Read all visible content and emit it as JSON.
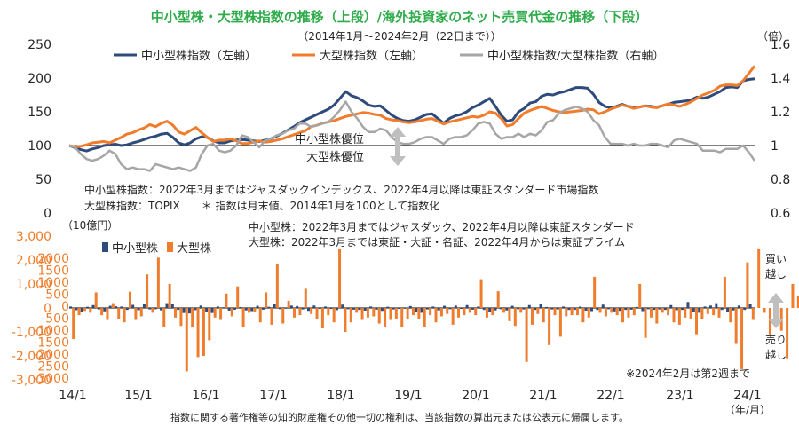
{
  "title": "中小型株・大型株指数の推移（上段）/海外投資家のネット売買代金の推移（下段）",
  "subtitle": "（2014年1月～2024年2月（22日まで））",
  "footer": "指数に関する著作権等の知的財産権その他一切の権利は、当該指数の算出元または公表元に帰属します。",
  "colors": {
    "title": "#2eab4a",
    "small": "#2f4b7c",
    "large": "#ef7d2d",
    "ratio": "#a6a6a6",
    "axis_red": "#ef7d2d",
    "text": "#262626",
    "arrow": "#bfbfbf"
  },
  "chart_data": [
    {
      "type": "line",
      "y2unit": "（倍）",
      "ylim": [
        0,
        250
      ],
      "yticks": [
        "0",
        "50",
        "100",
        "150",
        "200",
        "250"
      ],
      "y2lim": [
        0.6,
        1.6
      ],
      "y2ticks": [
        "0.6",
        "0.8",
        "1",
        "1.2",
        "1.4",
        "1.6"
      ],
      "legend": [
        "中小型株指数（左軸）",
        "大型株指数（左軸）",
        "中小型株指数/大型株指数（右軸）"
      ],
      "series": [
        {
          "name": "中小型株指数（左軸）",
          "axis": "left",
          "values": [
            100,
            97,
            94,
            92,
            95,
            97,
            100,
            101,
            102,
            100,
            101,
            104,
            106,
            109,
            112,
            114,
            117,
            118,
            112,
            104,
            101,
            104,
            110,
            113,
            112,
            107,
            104,
            104,
            107,
            108,
            109,
            108,
            107,
            106,
            108,
            110,
            114,
            118,
            123,
            128,
            134,
            138,
            142,
            146,
            150,
            154,
            160,
            170,
            180,
            174,
            171,
            166,
            160,
            158,
            159,
            152,
            145,
            140,
            137,
            136,
            138,
            142,
            146,
            147,
            140,
            133,
            140,
            144,
            146,
            150,
            156,
            160,
            165,
            170,
            158,
            145,
            136,
            138,
            150,
            155,
            163,
            165,
            173,
            176,
            175,
            178,
            180,
            183,
            186,
            186,
            185,
            176,
            164,
            158,
            156,
            158,
            161,
            158,
            157,
            157,
            159,
            158,
            157,
            159,
            161,
            164,
            165,
            166,
            168,
            172,
            170,
            172,
            176,
            180,
            186,
            187,
            186,
            196,
            198,
            199
          ]
        },
        {
          "name": "大型株指数（左軸）",
          "axis": "left",
          "values": [
            100,
            98,
            99,
            101,
            104,
            105,
            106,
            104,
            108,
            112,
            117,
            119,
            123,
            126,
            131,
            128,
            133,
            136,
            130,
            120,
            117,
            122,
            127,
            119,
            112,
            106,
            108,
            108,
            110,
            107,
            103,
            103,
            105,
            107,
            105,
            106,
            108,
            110,
            113,
            116,
            119,
            122,
            128,
            130,
            133,
            135,
            137,
            140,
            143,
            145,
            147,
            149,
            148,
            146,
            145,
            140,
            138,
            137,
            135,
            134,
            135,
            137,
            139,
            140,
            136,
            132,
            135,
            137,
            139,
            141,
            143,
            142,
            145,
            150,
            148,
            140,
            129,
            131,
            140,
            148,
            152,
            155,
            158,
            155,
            152,
            150,
            149,
            150,
            151,
            152,
            154,
            153,
            147,
            150,
            154,
            157,
            160,
            158,
            155,
            157,
            159,
            157,
            156,
            159,
            162,
            160,
            158,
            161,
            165,
            170,
            175,
            178,
            182,
            188,
            190,
            190,
            189,
            196,
            207,
            218
          ]
        },
        {
          "name": "中小型株指数/大型株指数（右軸）",
          "axis": "right",
          "values": [
            1.0,
            0.99,
            0.95,
            0.92,
            0.91,
            0.92,
            0.94,
            0.97,
            0.95,
            0.89,
            0.86,
            0.87,
            0.86,
            0.86,
            0.85,
            0.89,
            0.88,
            0.87,
            0.86,
            0.87,
            0.86,
            0.85,
            0.87,
            0.95,
            1.0,
            1.01,
            0.97,
            0.96,
            0.97,
            1.0,
            1.06,
            1.05,
            1.02,
            0.99,
            1.03,
            1.04,
            1.06,
            1.07,
            1.09,
            1.1,
            1.13,
            1.13,
            1.11,
            1.12,
            1.13,
            1.14,
            1.17,
            1.21,
            1.26,
            1.2,
            1.16,
            1.11,
            1.08,
            1.08,
            1.1,
            1.09,
            1.05,
            1.02,
            1.01,
            1.01,
            1.02,
            1.04,
            1.05,
            1.05,
            1.03,
            1.01,
            1.04,
            1.05,
            1.05,
            1.06,
            1.09,
            1.13,
            1.14,
            1.13,
            1.07,
            1.04,
            1.05,
            1.05,
            1.07,
            1.05,
            1.07,
            1.06,
            1.09,
            1.14,
            1.15,
            1.19,
            1.21,
            1.22,
            1.23,
            1.22,
            1.2,
            1.15,
            1.12,
            1.05,
            1.01,
            1.01,
            1.01,
            1.0,
            1.01,
            1.0,
            1.0,
            1.01,
            1.01,
            1.0,
            0.99,
            1.03,
            1.04,
            1.03,
            1.02,
            1.01,
            0.97,
            0.97,
            0.97,
            0.96,
            0.98,
            0.98,
            0.98,
            1.0,
            0.96,
            0.91
          ]
        }
      ],
      "annotations": {
        "small_cap_superior": "中小型株優位",
        "large_cap_superior": "大型株優位"
      },
      "notes": [
        "中小型株指数：2022年3月まではジャスダックインデックス、2022年4月以降は東証スタンダード市場指数",
        "大型株指数：TOPIX　　＊ 指数は月末値、2014年1月を100として指数化"
      ]
    },
    {
      "type": "bar",
      "yunit": "（10億円）",
      "ylim": [
        -3000,
        3000
      ],
      "yticks": [
        "3,000",
        "2,000",
        "1,000",
        "0",
        "-1,000",
        "-2,000",
        "-3,000"
      ],
      "yticks_inner": [
        "2000",
        "1500",
        "1000",
        "500",
        "0",
        "-500",
        "-1000",
        "-1500",
        "-2000",
        "-2500",
        "-3000"
      ],
      "x_ticks": [
        "14/1",
        "15/1",
        "16/1",
        "17/1",
        "18/1",
        "19/1",
        "20/1",
        "21/1",
        "22/1",
        "23/1",
        "24/1"
      ],
      "x_unit": "（年/月）",
      "legend": [
        "中小型株",
        "大型株"
      ],
      "series": [
        {
          "name": "中小型株",
          "values": [
            60,
            -90,
            -150,
            50,
            120,
            -60,
            -140,
            90,
            70,
            60,
            -80,
            130,
            -90,
            150,
            -60,
            -50,
            -100,
            200,
            160,
            -80,
            -210,
            -230,
            -90,
            100,
            -150,
            -210,
            60,
            30,
            -110,
            -70,
            40,
            -100,
            -130,
            90,
            -70,
            50,
            150,
            -50,
            -30,
            100,
            80,
            -60,
            -120,
            100,
            -40,
            60,
            -40,
            -90,
            140,
            -50,
            -70,
            -80,
            -110,
            60,
            -70,
            -120,
            50,
            -60,
            -40,
            -30,
            80,
            -150,
            -200,
            -60,
            60,
            -100,
            90,
            -50,
            100,
            -40,
            120,
            -70,
            60,
            -80,
            -150,
            -100,
            -50,
            -100,
            90,
            -50,
            -60,
            120,
            -80,
            150,
            40,
            -60,
            -60,
            60,
            -80,
            -80,
            60,
            -110,
            -130,
            -80,
            140,
            -50,
            -140,
            -120,
            -80,
            -70,
            40,
            -130,
            -50,
            -80,
            -60,
            -80,
            120,
            -90,
            -80,
            250,
            -150,
            -200,
            60,
            100,
            200,
            -80,
            -150,
            -100,
            100,
            -80,
            150
          ]
        },
        {
          "name": "大型株",
          "values": [
            -1300,
            -300,
            -120,
            -200,
            650,
            -300,
            -500,
            200,
            -450,
            -600,
            680,
            -500,
            -350,
            1400,
            -200,
            2100,
            -800,
            1000,
            -400,
            -750,
            -2650,
            -800,
            -2050,
            -2000,
            -1350,
            -400,
            -500,
            600,
            -350,
            900,
            -800,
            -200,
            -150,
            -600,
            650,
            -700,
            1850,
            -650,
            300,
            -400,
            -300,
            800,
            -250,
            -450,
            -850,
            -300,
            -600,
            2450,
            -1000,
            -600,
            -200,
            -500,
            -400,
            -350,
            -650,
            -800,
            -500,
            -450,
            -800,
            -450,
            -300,
            -450,
            -800,
            -300,
            -600,
            -350,
            -250,
            -700,
            -400,
            -300,
            -200,
            -300,
            1200,
            -400,
            -300,
            700,
            -200,
            -550,
            -750,
            -200,
            -2250,
            -700,
            -250,
            -600,
            -1550,
            -300,
            -1200,
            -350,
            -300,
            -300,
            -600,
            -400,
            1300,
            -200,
            -350,
            -200,
            -300,
            -600,
            -400,
            -300,
            1000,
            -1250,
            -400,
            -650,
            -200,
            -300,
            -600,
            -700,
            -400,
            -450,
            -1100,
            -450,
            -250,
            -300,
            -400,
            1300,
            -600,
            -1500,
            -2550,
            1900,
            -500,
            2450,
            -200,
            -1100,
            -300,
            -950,
            -2100,
            1000,
            500,
            -300,
            -800,
            -1100,
            800,
            -350,
            2050,
            800
          ]
        }
      ],
      "annotations": {
        "buy_over": [
          "買い",
          "越し"
        ],
        "sell_over": [
          "売り",
          "越し"
        ],
        "note_feb": "※2024年2月は第2週まで"
      },
      "notes": [
        "中小型株：2022年3月まではジャスダック、2022年4月以降は東証スタンダード",
        "大型株：2022年3月までは東証・大証・名証、2022年4月からは東証プライム"
      ]
    }
  ]
}
